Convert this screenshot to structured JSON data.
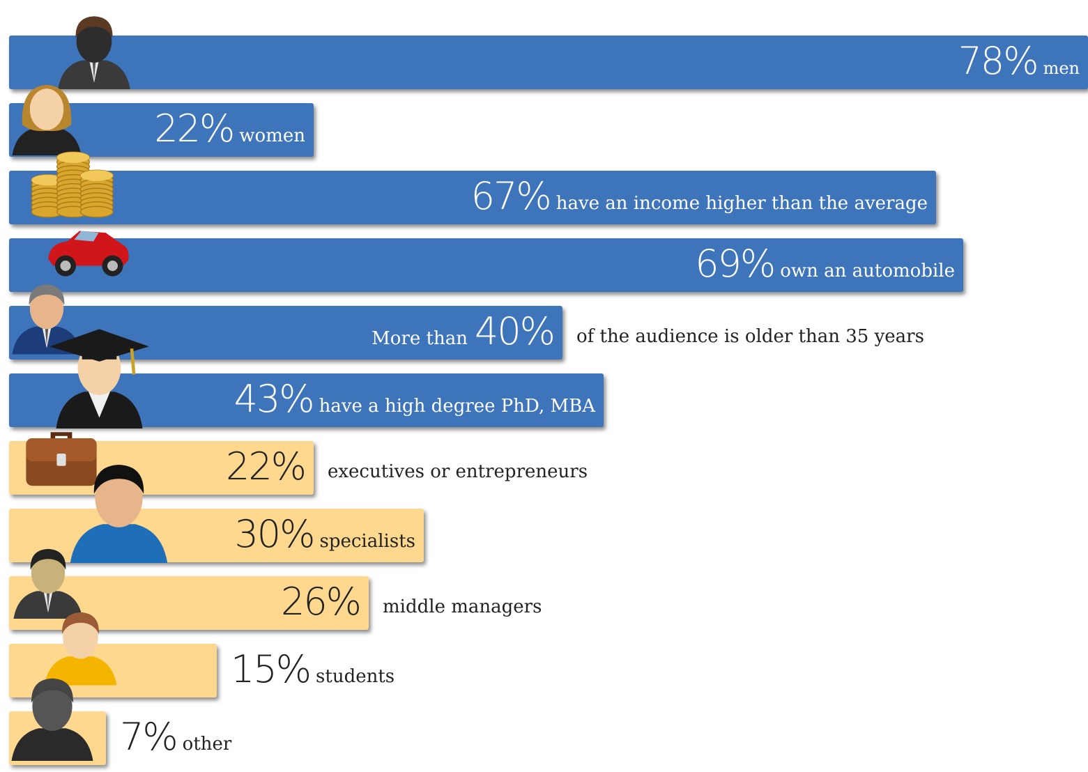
{
  "colors": {
    "blue": "#3d74ba",
    "beige": "#fdd88e",
    "text_on_blue": "#ffffff",
    "text_dark": "#222222"
  },
  "chart_data": {
    "type": "bar",
    "orientation": "horizontal",
    "unit": "%",
    "xlim": [
      0,
      78
    ],
    "grid": false,
    "items": [
      {
        "value": 78,
        "percent_label": "78%",
        "prefix": "",
        "text": "men",
        "color": "blue",
        "icon": "businessman-icon"
      },
      {
        "value": 22,
        "percent_label": "22%",
        "prefix": "",
        "text": "women",
        "color": "blue",
        "icon": "businesswoman-icon"
      },
      {
        "value": 67,
        "percent_label": "67%",
        "prefix": "",
        "text": "have an income higher than the average",
        "color": "blue",
        "icon": "coin-stacks-icon"
      },
      {
        "value": 69,
        "percent_label": "69%",
        "prefix": "",
        "text": "own an automobile",
        "color": "blue",
        "icon": "red-convertible-car-icon"
      },
      {
        "value": 40,
        "percent_label": "40%",
        "prefix": "More than",
        "text": "of the audience is older than 35 years",
        "color": "blue",
        "icon": "older-man-suit-icon"
      },
      {
        "value": 43,
        "percent_label": "43%",
        "prefix": "",
        "text": "have a high degree PhD, MBA",
        "color": "blue",
        "icon": "graduate-cap-icon"
      },
      {
        "value": 22,
        "percent_label": "22%",
        "prefix": "",
        "text": "executives or entrepreneurs",
        "color": "beige",
        "icon": "briefcase-icon"
      },
      {
        "value": 30,
        "percent_label": "30%",
        "prefix": "",
        "text": "specialists",
        "color": "beige",
        "icon": "superhero-icon"
      },
      {
        "value": 26,
        "percent_label": "26%",
        "prefix": "",
        "text": "middle managers",
        "color": "beige",
        "icon": "manager-man-icon"
      },
      {
        "value": 15,
        "percent_label": "15%",
        "prefix": "",
        "text": "students",
        "color": "beige",
        "icon": "student-person-icon"
      },
      {
        "value": 7,
        "percent_label": "7%",
        "prefix": "",
        "text": "other",
        "color": "beige",
        "icon": "anonymous-person-icon"
      }
    ]
  }
}
